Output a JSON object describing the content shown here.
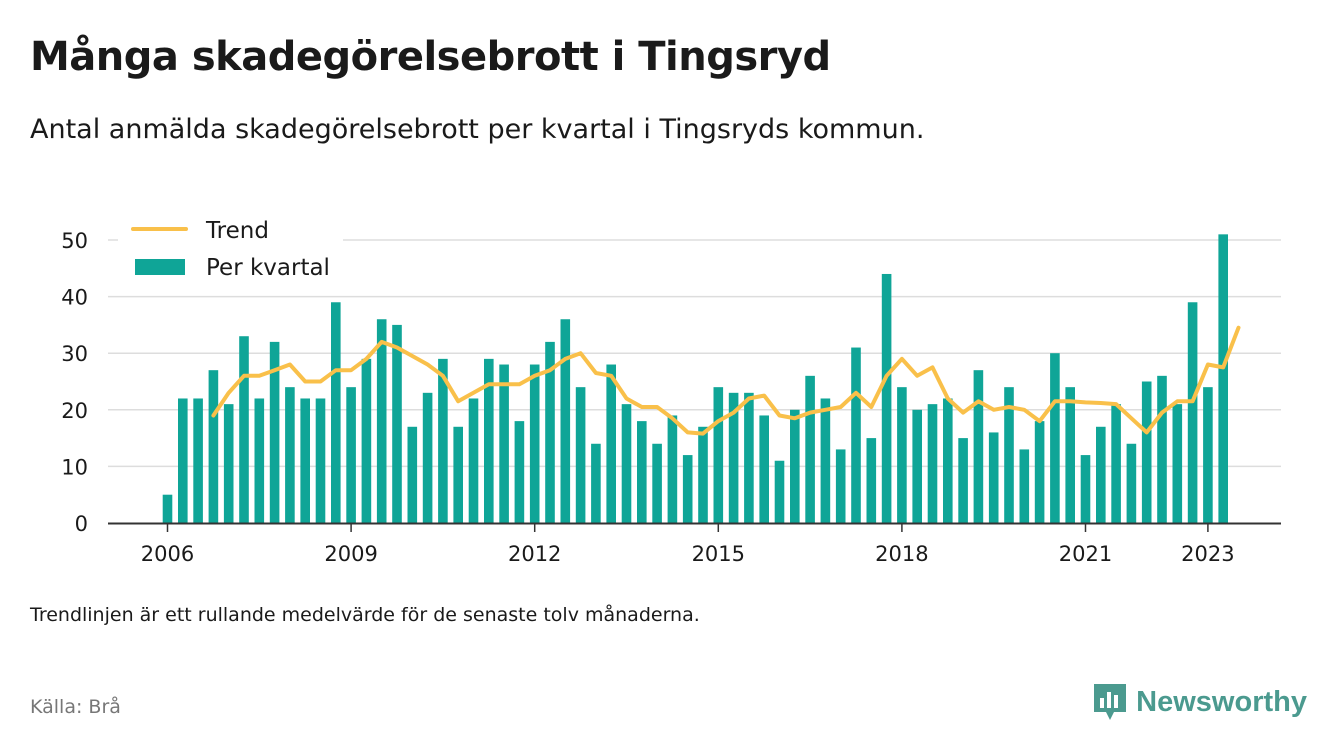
{
  "title": "Många skadegörelsebrott i Tingsryd",
  "subtitle": "Antal anmälda skadegörelsebrott per kvartal i Tingsryds kommun.",
  "note": "Trendlinjen är ett rullande medelvärde för de senaste tolv månaderna.",
  "source": "Källa: Brå",
  "brand": {
    "name": "Newsworthy",
    "icon": "newsworthy-chart-logo-icon",
    "color": "#4b9a8f"
  },
  "colors": {
    "bar": "#0fa597",
    "trend": "#f9c04a",
    "grid": "#dddddd",
    "axis": "#333333"
  },
  "chart_data": {
    "type": "bar",
    "x_axis": "quarterly, 2006 Q1 - 2023 Q2",
    "x_ticks": [
      "2006",
      "2009",
      "2012",
      "2015",
      "2018",
      "2021",
      "2023"
    ],
    "y_ticks": [
      0,
      10,
      20,
      30,
      40,
      50
    ],
    "ylim": [
      0,
      52
    ],
    "grid": true,
    "legend_position": "top-left",
    "series": [
      {
        "name": "Per kvartal",
        "type": "bar",
        "start": "2006 Q1",
        "values": [
          5,
          22,
          22,
          27,
          21,
          33,
          22,
          32,
          24,
          22,
          22,
          39,
          24,
          29,
          36,
          35,
          17,
          23,
          29,
          17,
          22,
          29,
          28,
          18,
          28,
          32,
          36,
          24,
          14,
          28,
          21,
          18,
          14,
          19,
          12,
          17,
          24,
          23,
          23,
          19,
          11,
          20,
          26,
          22,
          13,
          31,
          15,
          44,
          24,
          20,
          21,
          22,
          15,
          27,
          16,
          24,
          13,
          18,
          30,
          24,
          12,
          17,
          21,
          14,
          25,
          26,
          21,
          39,
          24,
          51
        ]
      },
      {
        "name": "Trend",
        "type": "line",
        "start": "2006 Q4",
        "values": [
          19,
          23,
          26,
          26,
          27,
          28,
          25,
          25,
          27,
          27,
          29,
          32,
          31,
          29.5,
          28,
          26,
          21.5,
          23,
          24.5,
          24.5,
          24.5,
          26,
          27,
          29,
          30,
          26.5,
          26,
          22,
          20.5,
          20.5,
          18.5,
          16,
          15.8,
          18,
          19.5,
          22,
          22.5,
          19,
          18.5,
          19.5,
          20,
          20.5,
          23,
          20.5,
          26,
          29,
          26,
          27.5,
          22,
          19.5,
          21.5,
          20,
          20.5,
          20,
          18,
          21.5,
          21.5,
          21.3,
          21.2,
          21,
          18.5,
          16,
          19.5,
          21.5,
          21.5,
          28,
          27.5,
          34.5
        ]
      }
    ]
  }
}
